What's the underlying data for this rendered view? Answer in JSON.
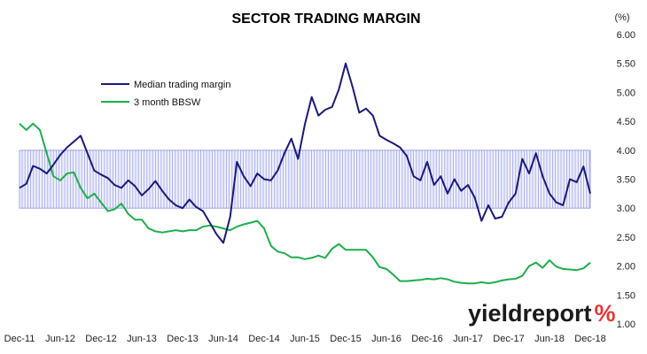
{
  "chart_data": {
    "type": "line",
    "title": "SECTOR TRADING MARGIN",
    "unit_label": "(%)",
    "ylim": [
      1.0,
      6.0
    ],
    "y_ticks": [
      "1.00",
      "1.50",
      "2.00",
      "2.50",
      "3.00",
      "3.50",
      "4.00",
      "4.50",
      "5.00",
      "5.50",
      "6.00"
    ],
    "x_range": [
      "2011-12",
      "2018-12"
    ],
    "x_ticks": [
      {
        "date": "2011-12",
        "label": "Dec-11"
      },
      {
        "date": "2012-06",
        "label": "Jun-12"
      },
      {
        "date": "2012-12",
        "label": "Dec-12"
      },
      {
        "date": "2013-06",
        "label": "Jun-13"
      },
      {
        "date": "2013-12",
        "label": "Dec-13"
      },
      {
        "date": "2014-06",
        "label": "Jun-14"
      },
      {
        "date": "2014-12",
        "label": "Dec-14"
      },
      {
        "date": "2015-06",
        "label": "Jun-15"
      },
      {
        "date": "2015-12",
        "label": "Dec-15"
      },
      {
        "date": "2016-06",
        "label": "Jun-16"
      },
      {
        "date": "2016-12",
        "label": "Dec-16"
      },
      {
        "date": "2017-06",
        "label": "Jun-17"
      },
      {
        "date": "2017-12",
        "label": "Dec-17"
      },
      {
        "date": "2018-06",
        "label": "Jun-18"
      },
      {
        "date": "2018-12",
        "label": "Dec-18"
      }
    ],
    "band": {
      "from": 3.0,
      "to": 4.0,
      "color": "#9fa3e8"
    },
    "legend_position": "upper-left",
    "series": [
      {
        "name": "Median trading margin",
        "color": "#1a1a7a",
        "points": [
          [
            "2011-12",
            3.35
          ],
          [
            "2012-01",
            3.42
          ],
          [
            "2012-02",
            3.73
          ],
          [
            "2012-03",
            3.68
          ],
          [
            "2012-04",
            3.6
          ],
          [
            "2012-05",
            3.75
          ],
          [
            "2012-06",
            3.92
          ],
          [
            "2012-07",
            4.05
          ],
          [
            "2012-08",
            4.15
          ],
          [
            "2012-09",
            4.25
          ],
          [
            "2012-10",
            3.95
          ],
          [
            "2012-11",
            3.65
          ],
          [
            "2012-12",
            3.58
          ],
          [
            "2013-01",
            3.52
          ],
          [
            "2013-02",
            3.4
          ],
          [
            "2013-03",
            3.35
          ],
          [
            "2013-04",
            3.48
          ],
          [
            "2013-05",
            3.38
          ],
          [
            "2013-06",
            3.22
          ],
          [
            "2013-07",
            3.33
          ],
          [
            "2013-08",
            3.47
          ],
          [
            "2013-09",
            3.3
          ],
          [
            "2013-10",
            3.15
          ],
          [
            "2013-11",
            3.05
          ],
          [
            "2013-12",
            3.0
          ],
          [
            "2014-01",
            3.15
          ],
          [
            "2014-02",
            3.02
          ],
          [
            "2014-03",
            2.95
          ],
          [
            "2014-04",
            2.75
          ],
          [
            "2014-05",
            2.55
          ],
          [
            "2014-06",
            2.4
          ],
          [
            "2014-07",
            2.85
          ],
          [
            "2014-08",
            3.8
          ],
          [
            "2014-09",
            3.55
          ],
          [
            "2014-10",
            3.38
          ],
          [
            "2014-11",
            3.6
          ],
          [
            "2014-12",
            3.5
          ],
          [
            "2015-01",
            3.48
          ],
          [
            "2015-02",
            3.65
          ],
          [
            "2015-03",
            3.95
          ],
          [
            "2015-04",
            4.2
          ],
          [
            "2015-05",
            3.85
          ],
          [
            "2015-06",
            4.45
          ],
          [
            "2015-07",
            4.92
          ],
          [
            "2015-08",
            4.6
          ],
          [
            "2015-09",
            4.7
          ],
          [
            "2015-10",
            4.75
          ],
          [
            "2015-11",
            5.05
          ],
          [
            "2015-12",
            5.5
          ],
          [
            "2016-01",
            5.1
          ],
          [
            "2016-02",
            4.65
          ],
          [
            "2016-03",
            4.72
          ],
          [
            "2016-04",
            4.6
          ],
          [
            "2016-05",
            4.25
          ],
          [
            "2016-06",
            4.18
          ],
          [
            "2016-07",
            4.12
          ],
          [
            "2016-08",
            4.05
          ],
          [
            "2016-09",
            3.9
          ],
          [
            "2016-10",
            3.55
          ],
          [
            "2016-11",
            3.48
          ],
          [
            "2016-12",
            3.8
          ],
          [
            "2017-01",
            3.4
          ],
          [
            "2017-02",
            3.55
          ],
          [
            "2017-03",
            3.25
          ],
          [
            "2017-04",
            3.5
          ],
          [
            "2017-05",
            3.3
          ],
          [
            "2017-06",
            3.4
          ],
          [
            "2017-07",
            3.18
          ],
          [
            "2017-08",
            2.78
          ],
          [
            "2017-09",
            3.05
          ],
          [
            "2017-10",
            2.82
          ],
          [
            "2017-11",
            2.85
          ],
          [
            "2017-12",
            3.1
          ],
          [
            "2018-01",
            3.25
          ],
          [
            "2018-02",
            3.85
          ],
          [
            "2018-03",
            3.6
          ],
          [
            "2018-04",
            3.95
          ],
          [
            "2018-05",
            3.55
          ],
          [
            "2018-06",
            3.25
          ],
          [
            "2018-07",
            3.1
          ],
          [
            "2018-08",
            3.05
          ],
          [
            "2018-09",
            3.5
          ],
          [
            "2018-10",
            3.45
          ],
          [
            "2018-11",
            3.72
          ],
          [
            "2018-12",
            3.25
          ]
        ]
      },
      {
        "name": "3 month BBSW",
        "color": "#1fae4b",
        "points": [
          [
            "2011-12",
            4.46
          ],
          [
            "2012-01",
            4.35
          ],
          [
            "2012-02",
            4.46
          ],
          [
            "2012-03",
            4.35
          ],
          [
            "2012-04",
            3.95
          ],
          [
            "2012-05",
            3.55
          ],
          [
            "2012-06",
            3.48
          ],
          [
            "2012-07",
            3.6
          ],
          [
            "2012-08",
            3.62
          ],
          [
            "2012-09",
            3.35
          ],
          [
            "2012-10",
            3.17
          ],
          [
            "2012-11",
            3.25
          ],
          [
            "2012-12",
            3.1
          ],
          [
            "2013-01",
            2.95
          ],
          [
            "2013-02",
            2.98
          ],
          [
            "2013-03",
            3.08
          ],
          [
            "2013-04",
            2.9
          ],
          [
            "2013-05",
            2.8
          ],
          [
            "2013-06",
            2.8
          ],
          [
            "2013-07",
            2.65
          ],
          [
            "2013-08",
            2.6
          ],
          [
            "2013-09",
            2.58
          ],
          [
            "2013-10",
            2.6
          ],
          [
            "2013-11",
            2.62
          ],
          [
            "2013-12",
            2.6
          ],
          [
            "2014-01",
            2.62
          ],
          [
            "2014-02",
            2.62
          ],
          [
            "2014-03",
            2.68
          ],
          [
            "2014-04",
            2.7
          ],
          [
            "2014-05",
            2.68
          ],
          [
            "2014-06",
            2.65
          ],
          [
            "2014-07",
            2.62
          ],
          [
            "2014-08",
            2.68
          ],
          [
            "2014-09",
            2.72
          ],
          [
            "2014-10",
            2.75
          ],
          [
            "2014-11",
            2.78
          ],
          [
            "2014-12",
            2.65
          ],
          [
            "2015-01",
            2.35
          ],
          [
            "2015-02",
            2.25
          ],
          [
            "2015-03",
            2.22
          ],
          [
            "2015-04",
            2.15
          ],
          [
            "2015-05",
            2.15
          ],
          [
            "2015-06",
            2.12
          ],
          [
            "2015-07",
            2.14
          ],
          [
            "2015-08",
            2.18
          ],
          [
            "2015-09",
            2.14
          ],
          [
            "2015-10",
            2.3
          ],
          [
            "2015-11",
            2.38
          ],
          [
            "2015-12",
            2.28
          ],
          [
            "2016-01",
            2.28
          ],
          [
            "2016-02",
            2.28
          ],
          [
            "2016-03",
            2.28
          ],
          [
            "2016-04",
            2.15
          ],
          [
            "2016-05",
            1.98
          ],
          [
            "2016-06",
            1.95
          ],
          [
            "2016-07",
            1.85
          ],
          [
            "2016-08",
            1.74
          ],
          [
            "2016-09",
            1.74
          ],
          [
            "2016-10",
            1.75
          ],
          [
            "2016-11",
            1.76
          ],
          [
            "2016-12",
            1.78
          ],
          [
            "2017-01",
            1.77
          ],
          [
            "2017-02",
            1.79
          ],
          [
            "2017-03",
            1.77
          ],
          [
            "2017-04",
            1.73
          ],
          [
            "2017-05",
            1.71
          ],
          [
            "2017-06",
            1.7
          ],
          [
            "2017-07",
            1.7
          ],
          [
            "2017-08",
            1.72
          ],
          [
            "2017-09",
            1.7
          ],
          [
            "2017-10",
            1.72
          ],
          [
            "2017-11",
            1.75
          ],
          [
            "2017-12",
            1.77
          ],
          [
            "2018-01",
            1.78
          ],
          [
            "2018-02",
            1.83
          ],
          [
            "2018-03",
            2.0
          ],
          [
            "2018-04",
            2.06
          ],
          [
            "2018-05",
            1.97
          ],
          [
            "2018-06",
            2.1
          ],
          [
            "2018-07",
            1.99
          ],
          [
            "2018-08",
            1.95
          ],
          [
            "2018-09",
            1.94
          ],
          [
            "2018-10",
            1.93
          ],
          [
            "2018-11",
            1.96
          ],
          [
            "2018-12",
            2.06
          ]
        ]
      }
    ]
  },
  "logo": {
    "text_main": "yieldreport",
    "text_symbol": "%",
    "color_main": "#1a1a1a",
    "color_green": "#1fae4b",
    "color_red": "#e53935"
  }
}
